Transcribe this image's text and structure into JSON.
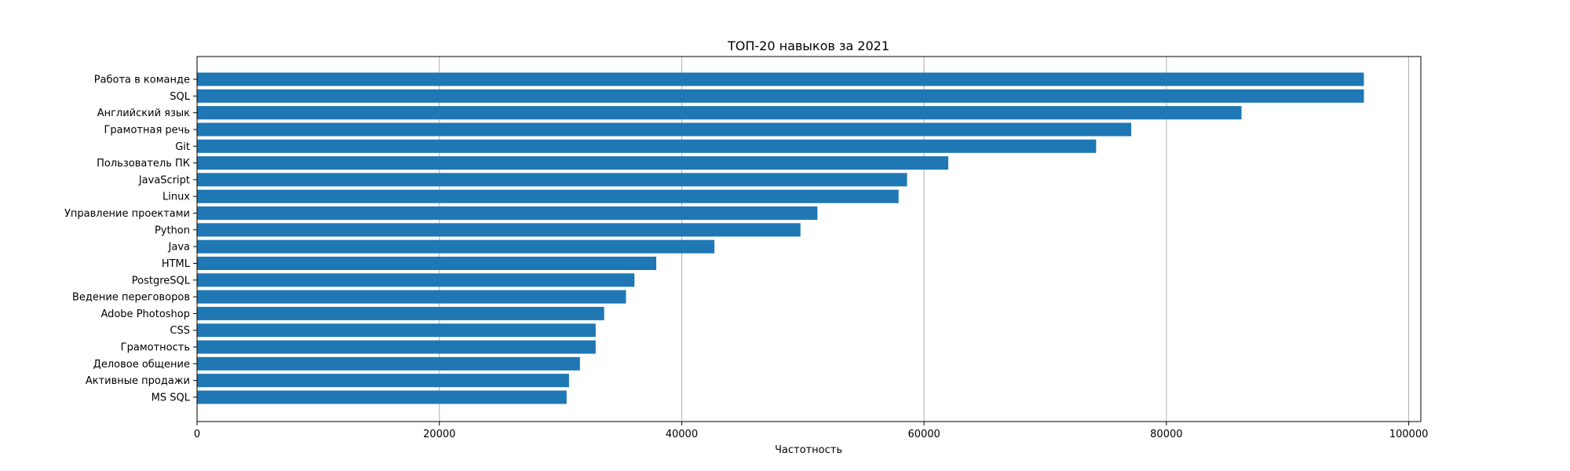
{
  "chart_data": {
    "type": "bar",
    "orientation": "horizontal",
    "title": "ТОП-20 навыков за 2021",
    "xlabel": "Частотность",
    "ylabel": "",
    "xlim": [
      0,
      101000
    ],
    "xticks": [
      0,
      20000,
      40000,
      60000,
      80000,
      100000
    ],
    "grid": "x-only",
    "bar_color": "#1f77b4",
    "categories": [
      "Работа в команде",
      "SQL",
      "Английский язык",
      "Грамотная речь",
      "Git",
      "Пользователь ПК",
      "JavaScript",
      "Linux",
      "Управление проектами",
      "Python",
      "Java",
      "HTML",
      "PostgreSQL",
      "Ведение переговоров",
      "Adobe Photoshop",
      "CSS",
      "Грамотность",
      "Деловое общение",
      "Активные продажи",
      "MS SQL"
    ],
    "values": [
      96300,
      96300,
      86200,
      77100,
      74200,
      62000,
      58600,
      57900,
      51200,
      49800,
      42700,
      37900,
      36100,
      35400,
      33600,
      32900,
      32900,
      31600,
      30700,
      30500
    ]
  }
}
